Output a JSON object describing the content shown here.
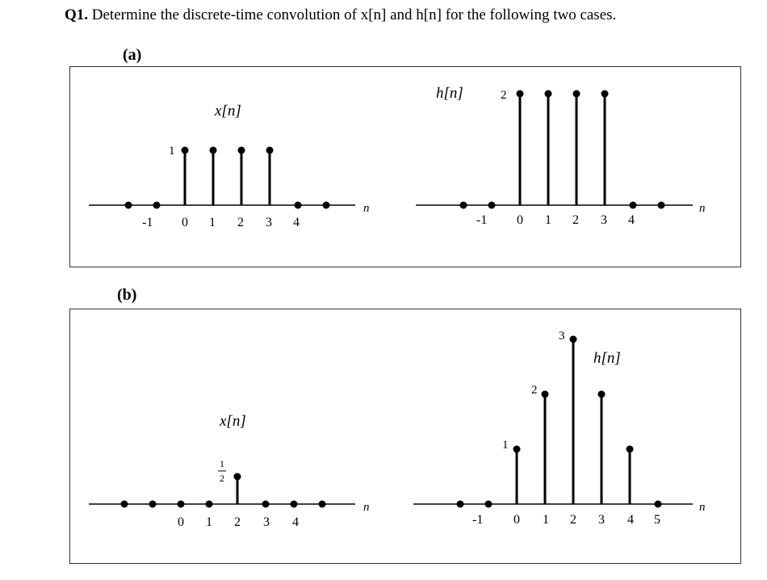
{
  "question": {
    "number": "Q1.",
    "text": "Determine the discrete-time convolution of x[n] and h[n] for the following two cases."
  },
  "parts": [
    {
      "label": "(a)",
      "x": {
        "title": "x[n]",
        "axis_var": "n",
        "points": [
          [
            -2,
            0
          ],
          [
            -1,
            0
          ],
          [
            0,
            1
          ],
          [
            1,
            1
          ],
          [
            2,
            1
          ],
          [
            3,
            1
          ],
          [
            4,
            0
          ],
          [
            5,
            0
          ]
        ],
        "tick_labels": [
          "-1",
          "0",
          "1",
          "2",
          "3",
          "4"
        ],
        "value_labels": [
          "1"
        ]
      },
      "h": {
        "title": "h[n]",
        "axis_var": "n",
        "points": [
          [
            -2,
            0
          ],
          [
            -1,
            0
          ],
          [
            0,
            2
          ],
          [
            1,
            2
          ],
          [
            2,
            2
          ],
          [
            3,
            2
          ],
          [
            4,
            0
          ],
          [
            5,
            0
          ]
        ],
        "tick_labels": [
          "-1",
          "0",
          "1",
          "2",
          "3",
          "4"
        ],
        "value_labels": [
          "2"
        ]
      }
    },
    {
      "label": "(b)",
      "x": {
        "title": "x[n]",
        "axis_var": "n",
        "points": [
          [
            -2,
            0
          ],
          [
            -1,
            0
          ],
          [
            0,
            0
          ],
          [
            1,
            0
          ],
          [
            2,
            0.5
          ],
          [
            3,
            0
          ],
          [
            4,
            0
          ],
          [
            5,
            0
          ]
        ],
        "tick_labels": [
          "0",
          "1",
          "2",
          "3",
          "4"
        ],
        "value_label_num": "1",
        "value_label_den": "2"
      },
      "h": {
        "title": "h[n]",
        "axis_var": "n",
        "points": [
          [
            -2,
            0
          ],
          [
            -1,
            0
          ],
          [
            0,
            1
          ],
          [
            1,
            2
          ],
          [
            2,
            3
          ],
          [
            3,
            2
          ],
          [
            4,
            1
          ],
          [
            5,
            0
          ]
        ],
        "tick_labels": [
          "-1",
          "0",
          "1",
          "2",
          "3",
          "4",
          "5"
        ],
        "value_labels": [
          "1",
          "2",
          "3"
        ]
      }
    }
  ]
}
